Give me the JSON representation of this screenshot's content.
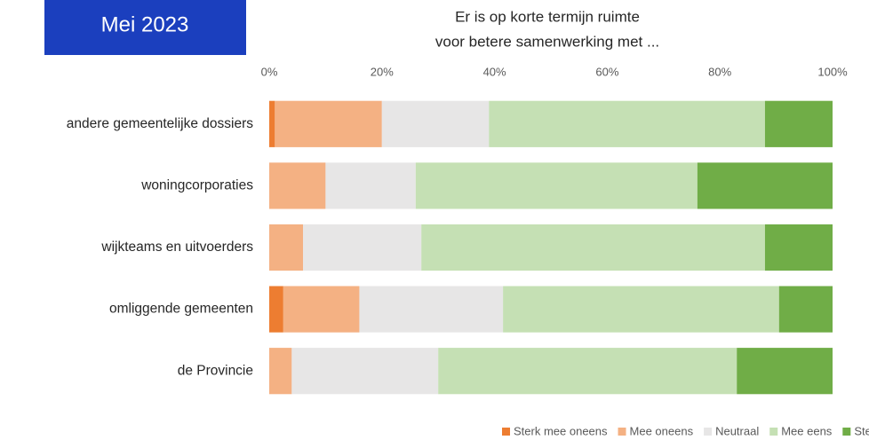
{
  "chart_data": {
    "type": "stacked-bar-horizontal",
    "badge": "Mei 2023",
    "title": [
      "Er is op korte termijn ruimte",
      "voor betere samenwerking met ..."
    ],
    "categories": [
      "andere gemeentelijke dossiers",
      "woningcorporaties",
      "wijkteams en uitvoerders",
      "omliggende gemeenten",
      "de Provincie"
    ],
    "series": [
      {
        "name": "Sterk mee oneens",
        "color": "#ed7d31",
        "values": [
          1,
          0,
          0,
          2.5,
          0
        ]
      },
      {
        "name": "Mee oneens",
        "color": "#f4b183",
        "values": [
          19,
          10,
          6,
          13.5,
          4
        ]
      },
      {
        "name": "Neutraal",
        "color": "#e7e6e6",
        "values": [
          19,
          16,
          21,
          25.5,
          26
        ]
      },
      {
        "name": "Mee eens",
        "color": "#c5e0b4",
        "values": [
          49,
          50,
          61,
          49,
          53
        ]
      },
      {
        "name": "Sterk mee eens",
        "color": "#70ad47",
        "values": [
          12,
          24,
          12,
          9.5,
          17
        ]
      }
    ],
    "xlim": [
      0,
      100
    ],
    "xticks": [
      {
        "value": 0,
        "label": "0%"
      },
      {
        "value": 20,
        "label": "20%"
      },
      {
        "value": 40,
        "label": "40%"
      },
      {
        "value": 60,
        "label": "60%"
      },
      {
        "value": 80,
        "label": "80%"
      },
      {
        "value": 100,
        "label": "100%"
      }
    ],
    "legend": "bottom"
  }
}
